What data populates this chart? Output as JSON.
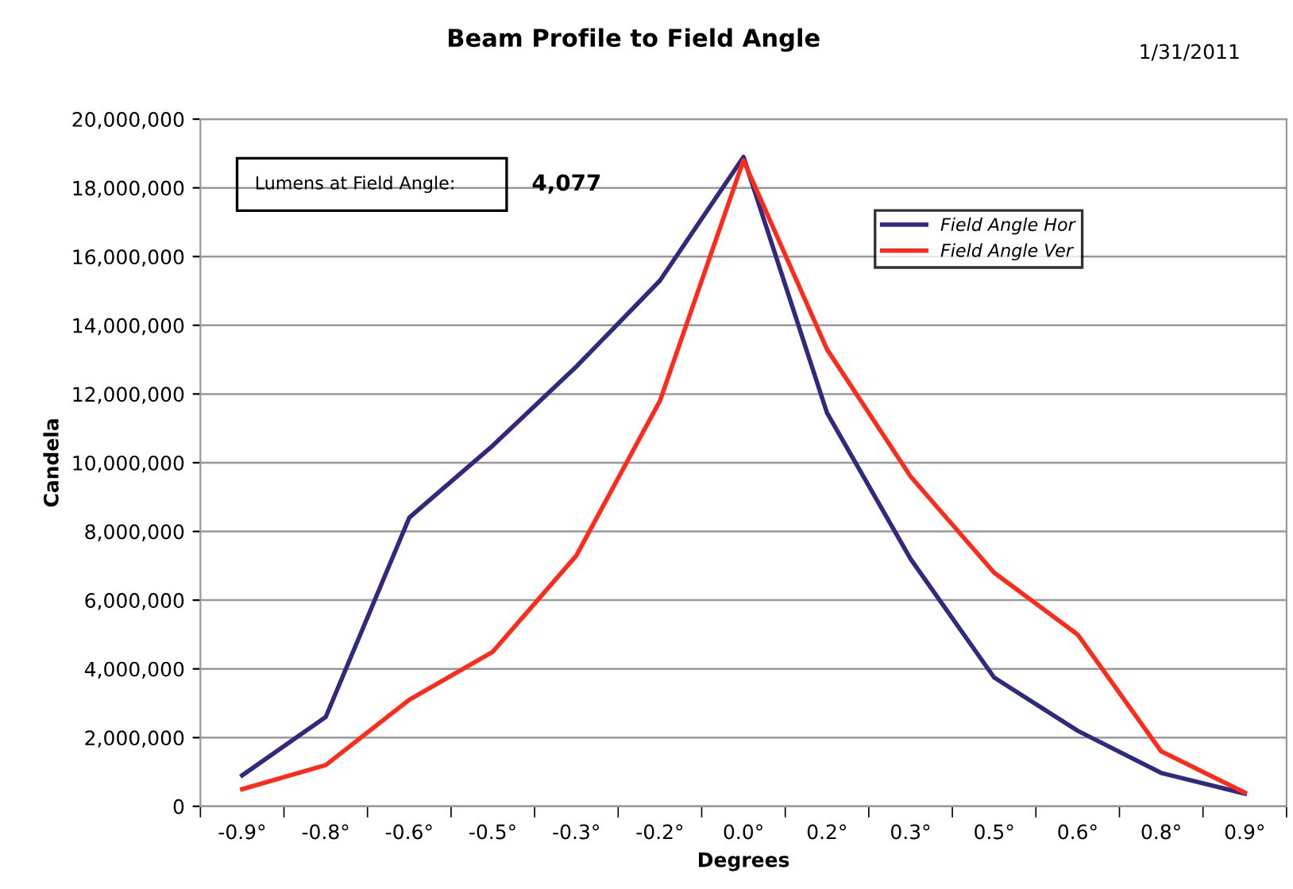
{
  "chart_data": {
    "type": "line",
    "title": "Beam Profile to Field Angle",
    "xlabel": "Degrees",
    "ylabel": "Candela",
    "annotations": [
      "Lumens at Field Angle:",
      "4,077",
      "1/31/2011"
    ],
    "categories": [
      "-0.9°",
      "-0.8°",
      "-0.6°",
      "-0.5°",
      "-0.3°",
      "-0.2°",
      "0.0°",
      "0.2°",
      "0.3°",
      "0.5°",
      "0.6°",
      "0.8°",
      "0.9°"
    ],
    "series": [
      {
        "name": "Field Angle Hor",
        "color": "#2e2a80",
        "values": [
          900000,
          2600000,
          8400000,
          10500000,
          12800000,
          15300000,
          18900000,
          11450000,
          7200000,
          3750000,
          2200000,
          970000,
          370000
        ]
      },
      {
        "name": "Field Angle Ver",
        "color": "#ff2a1a",
        "values": [
          500000,
          1200000,
          3100000,
          4500000,
          7300000,
          11800000,
          18800000,
          13300000,
          9600000,
          6800000,
          5000000,
          1600000,
          400000
        ]
      }
    ],
    "ylim": [
      0,
      20000000
    ],
    "yticks": [
      {
        "value": 0,
        "label": "0"
      },
      {
        "value": 2000000,
        "label": "2,000,000"
      },
      {
        "value": 4000000,
        "label": "4,000,000"
      },
      {
        "value": 6000000,
        "label": "6,000,000"
      },
      {
        "value": 8000000,
        "label": "8,000,000"
      },
      {
        "value": 10000000,
        "label": "10,000,000"
      },
      {
        "value": 12000000,
        "label": "12,000,000"
      },
      {
        "value": 14000000,
        "label": "14,000,000"
      },
      {
        "value": 16000000,
        "label": "16,000,000"
      },
      {
        "value": 18000000,
        "label": "18,000,000"
      },
      {
        "value": 20000000,
        "label": "20,000,000"
      }
    ],
    "grid": "y",
    "legend": "top right",
    "marker": "none",
    "line_style": "solid"
  }
}
